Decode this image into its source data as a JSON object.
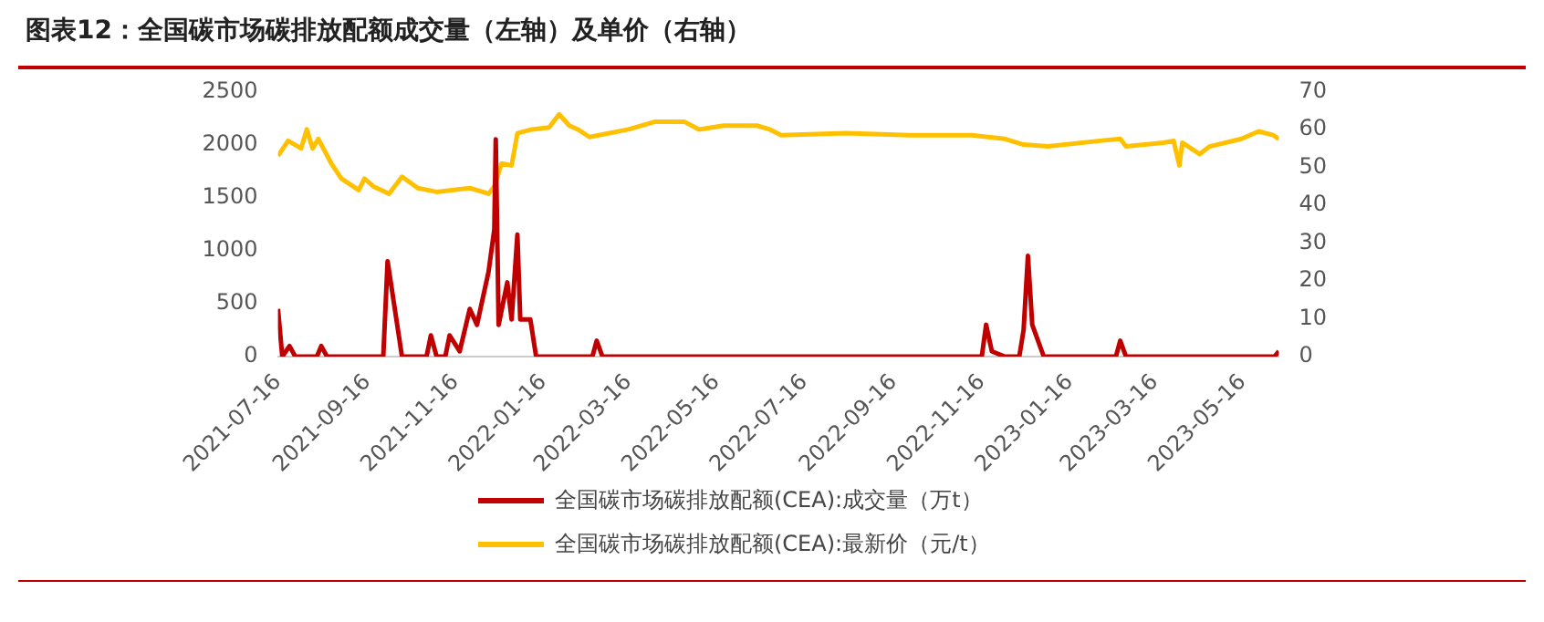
{
  "chart_data": {
    "type": "line",
    "title": "图表12：全国碳市场碳排放配额成交量（左轴）及单价（右轴）",
    "xlim": [
      "2021-07-16",
      "2023-06-10"
    ],
    "xticks": [
      "2021-07-16",
      "2021-09-16",
      "2021-11-16",
      "2022-01-16",
      "2022-03-16",
      "2022-05-16",
      "2022-07-16",
      "2022-09-16",
      "2022-11-16",
      "2023-01-16",
      "2023-03-16",
      "2023-05-16"
    ],
    "ylim": [
      0,
      2500
    ],
    "yticks": [
      0,
      500,
      1000,
      1500,
      2000,
      2500
    ],
    "y2lim": [
      0,
      70
    ],
    "y2ticks": [
      0,
      10,
      20,
      30,
      40,
      50,
      60,
      70
    ],
    "grid": false,
    "legend": "bottom",
    "marker": "none",
    "line_style": "solid",
    "series": [
      {
        "name": "全国碳市场碳排放配额(CEA):成交量（万t）",
        "color": "#c00000",
        "x": [
          "2021-07-16",
          "2021-07-19",
          "2021-07-24",
          "2021-07-28",
          "2021-08-12",
          "2021-08-15",
          "2021-08-19",
          "2021-09-27",
          "2021-09-30",
          "2021-10-10",
          "2021-10-27",
          "2021-10-30",
          "2021-11-03",
          "2021-11-09",
          "2021-11-12",
          "2021-11-19",
          "2021-11-26",
          "2021-12-01",
          "2021-12-09",
          "2021-12-13",
          "2021-12-14",
          "2021-12-16",
          "2021-12-22",
          "2021-12-25",
          "2021-12-29",
          "2021-12-31",
          "2022-01-07",
          "2022-01-11",
          "2022-02-19",
          "2022-02-22",
          "2022-02-26",
          "2022-11-16",
          "2022-11-19",
          "2022-11-23",
          "2022-12-02",
          "2022-12-12",
          "2022-12-15",
          "2022-12-18",
          "2022-12-21",
          "2022-12-29",
          "2023-02-17",
          "2023-02-20",
          "2023-02-24",
          "2023-06-07",
          "2023-06-10"
        ],
        "values": [
          450,
          0,
          100,
          0,
          0,
          100,
          0,
          0,
          900,
          0,
          0,
          200,
          0,
          0,
          200,
          50,
          450,
          300,
          800,
          1200,
          2050,
          300,
          700,
          350,
          1150,
          350,
          350,
          0,
          0,
          150,
          0,
          0,
          300,
          50,
          0,
          0,
          250,
          950,
          300,
          0,
          0,
          150,
          0,
          0,
          50
        ]
      },
      {
        "name": "全国碳市场碳排放配额(CEA):最新价（元/t）",
        "color": "#ffc000",
        "axis": "y2",
        "x": [
          "2021-07-16",
          "2021-07-23",
          "2021-08-01",
          "2021-08-05",
          "2021-08-09",
          "2021-08-13",
          "2021-08-22",
          "2021-08-29",
          "2021-09-10",
          "2021-09-14",
          "2021-09-20",
          "2021-10-01",
          "2021-10-10",
          "2021-10-21",
          "2021-11-03",
          "2021-11-26",
          "2021-12-05",
          "2021-12-09",
          "2021-12-13",
          "2021-12-18",
          "2021-12-25",
          "2021-12-29",
          "2022-01-08",
          "2022-01-20",
          "2022-01-27",
          "2022-02-03",
          "2022-02-09",
          "2022-02-17",
          "2022-03-16",
          "2022-04-03",
          "2022-04-24",
          "2022-05-04",
          "2022-05-21",
          "2022-06-13",
          "2022-06-22",
          "2022-06-30",
          "2022-08-14",
          "2022-09-27",
          "2022-11-09",
          "2022-12-02",
          "2022-12-15",
          "2023-01-01",
          "2023-02-06",
          "2023-02-20",
          "2023-02-24",
          "2023-03-22",
          "2023-03-29",
          "2023-04-02",
          "2023-04-04",
          "2023-04-16",
          "2023-04-23",
          "2023-05-15",
          "2023-05-27",
          "2023-06-06",
          "2023-06-10"
        ],
        "values": [
          53,
          57,
          55,
          60,
          55,
          57.5,
          51,
          47,
          44,
          47,
          45,
          43,
          47.5,
          44.5,
          43.5,
          44.5,
          43.5,
          43,
          45,
          51,
          50.5,
          59,
          60,
          60.5,
          64,
          61,
          60,
          58,
          60,
          62,
          62,
          60,
          61,
          61,
          60,
          58.5,
          59,
          58.5,
          58.5,
          57.5,
          56,
          55.5,
          57,
          57.5,
          55.5,
          56.5,
          57,
          50.5,
          56.5,
          53.5,
          55.5,
          57.5,
          59.5,
          58.5,
          57.5
        ]
      }
    ]
  }
}
